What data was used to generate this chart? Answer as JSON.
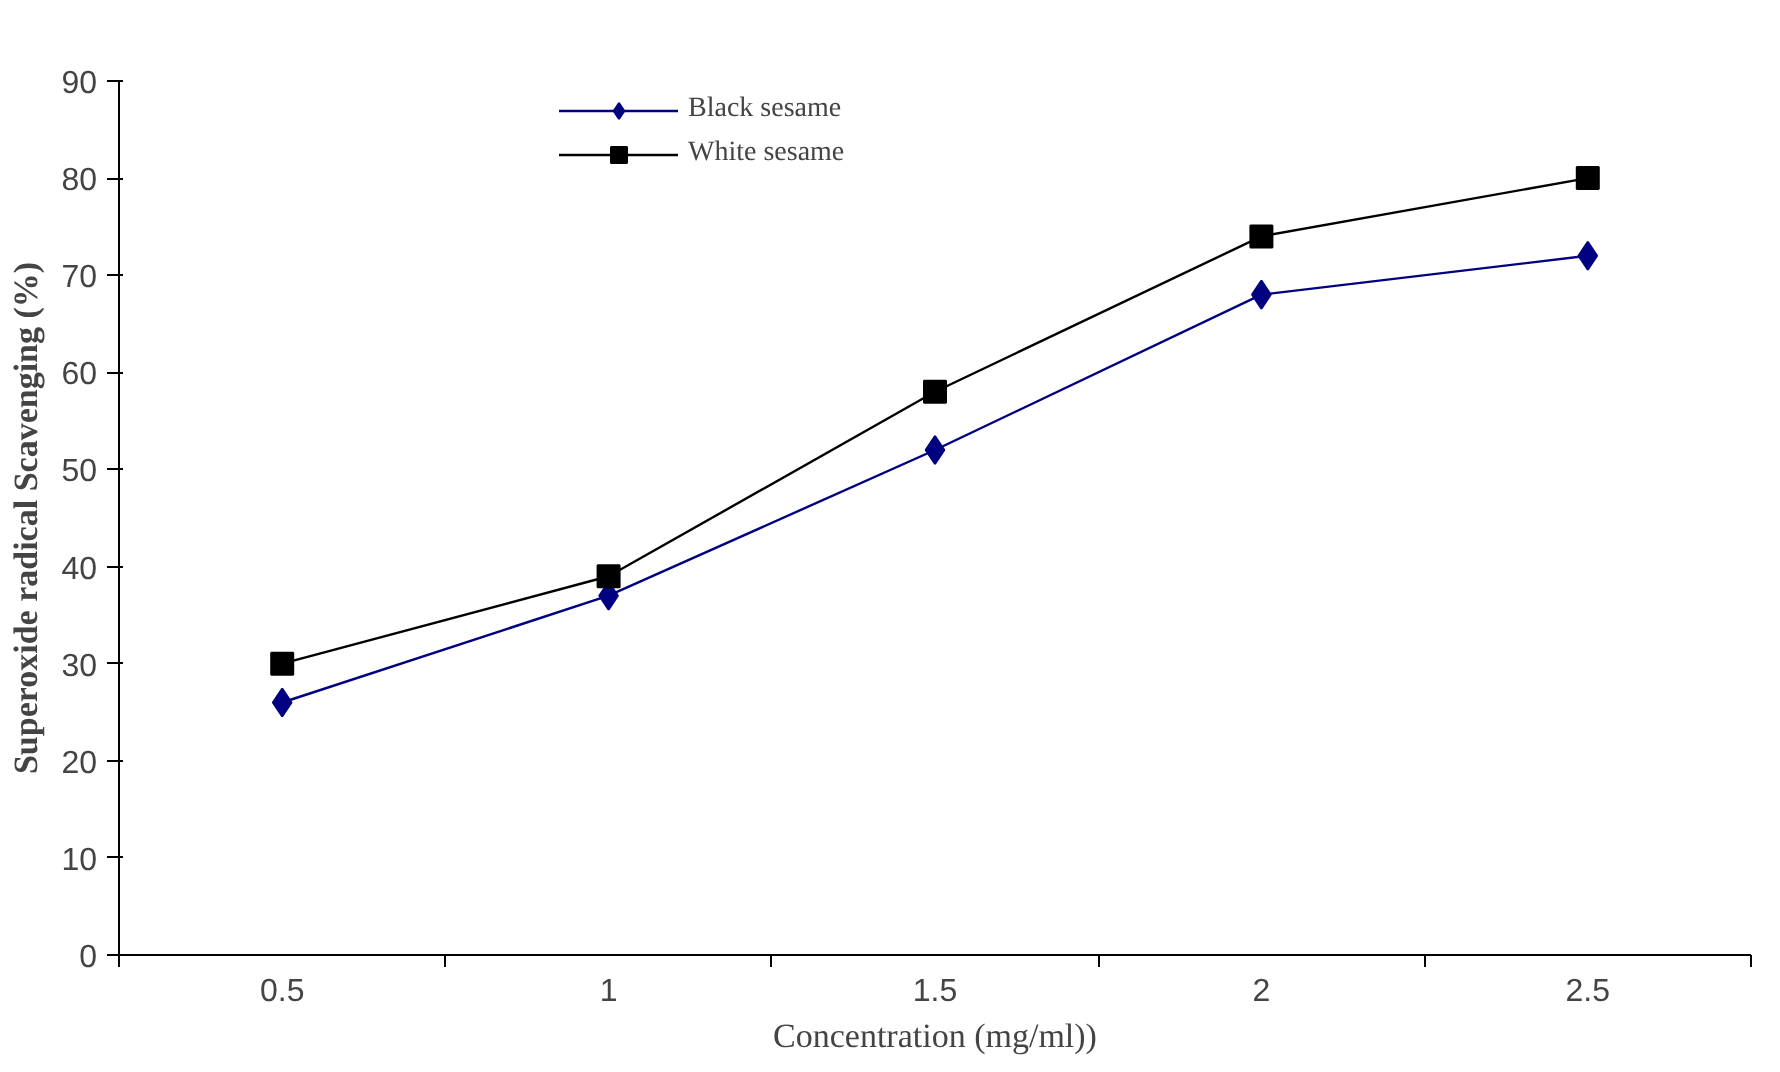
{
  "chart_data": {
    "type": "line",
    "xlabel": "Concentration (mg/ml))",
    "ylabel": "Superoxide radical Scavenging (%)",
    "categories": [
      "0.5",
      "1",
      "1.5",
      "2",
      "2.5"
    ],
    "series": [
      {
        "name": "Black sesame",
        "color": "#000080",
        "marker": "diamond",
        "values": [
          26,
          37,
          52,
          68,
          72
        ]
      },
      {
        "name": "White sesame",
        "color": "#000000",
        "marker": "square",
        "values": [
          30,
          39,
          58,
          74,
          80
        ]
      }
    ],
    "ylim": [
      0,
      90
    ],
    "yticks": [
      0,
      10,
      20,
      30,
      40,
      50,
      60,
      70,
      80,
      90
    ],
    "grid": false,
    "legend": "top",
    "line_style": "solid"
  }
}
